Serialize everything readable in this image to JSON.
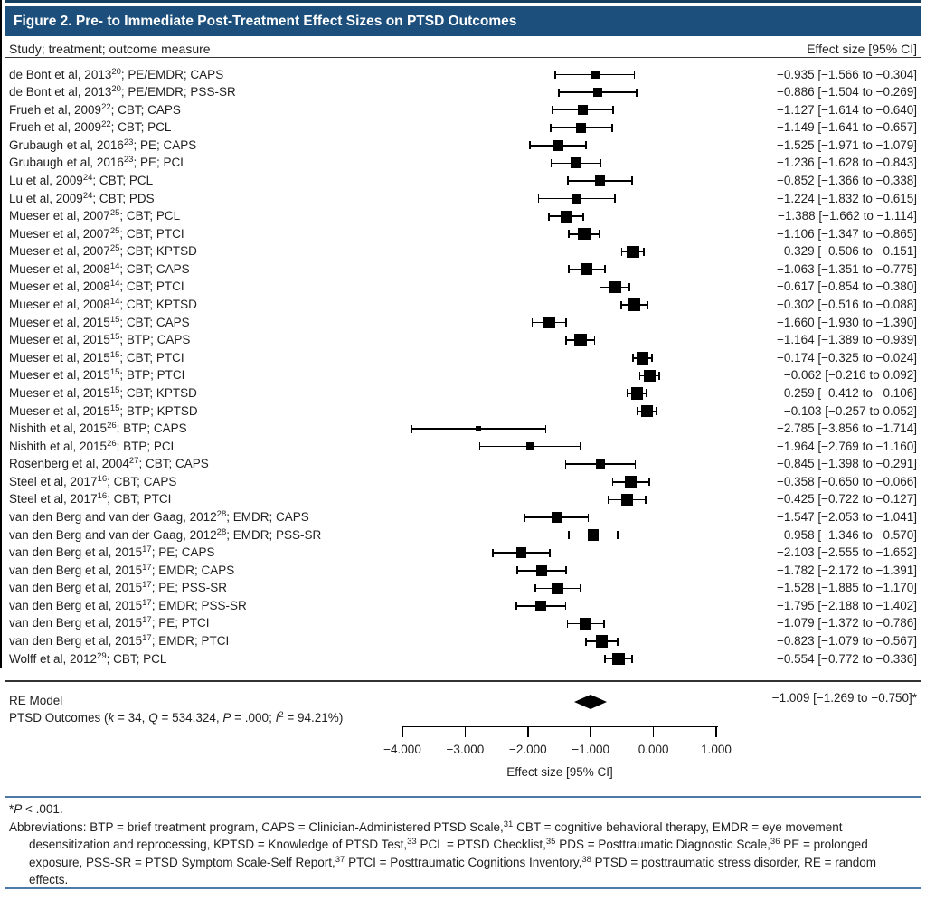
{
  "figure": {
    "title": "Figure 2. Pre- to Immediate Post-Treatment Effect Sizes on PTSD Outcomes",
    "col_left_header": "Study; treatment; outcome measure",
    "col_right_header": "Effect size [95% CI]"
  },
  "colors": {
    "title_bar": "#1d4f7c",
    "top_accent_rule": "#16405f",
    "footer_rule": "#4d79a4",
    "plot_ink": "#000000",
    "text": "#1f1f1f"
  },
  "chart_data": {
    "type": "forest",
    "title": "Figure 2. Pre- to Immediate Post-Treatment Effect Sizes on PTSD Outcomes",
    "xlabel": "Effect size [95% CI]",
    "xlim": [
      -4.35,
      1.35
    ],
    "zero_reference_line": 0,
    "x_ticks": [
      -4.0,
      -3.0,
      -2.0,
      -1.0,
      0.0,
      1.0
    ],
    "x_tick_labels": [
      "−4.000",
      "−3.000",
      "−2.000",
      "−1.000",
      "0.000",
      "1.000"
    ],
    "studies": [
      {
        "label_pre": "de Bont et al, 2013",
        "label_sup": "20",
        "label_post": "; PE/EMDR; CAPS",
        "es": -0.935,
        "lo": -1.566,
        "hi": -0.304,
        "es_label": "−0.935 [−1.566 to −0.304]"
      },
      {
        "label_pre": "de Bont et al, 2013",
        "label_sup": "20",
        "label_post": "; PE/EMDR; PSS-SR",
        "es": -0.886,
        "lo": -1.504,
        "hi": -0.269,
        "es_label": "−0.886 [−1.504 to −0.269]"
      },
      {
        "label_pre": "Frueh et al, 2009",
        "label_sup": "22",
        "label_post": "; CBT; CAPS",
        "es": -1.127,
        "lo": -1.614,
        "hi": -0.64,
        "es_label": "−1.127 [−1.614 to −0.640]"
      },
      {
        "label_pre": "Frueh et al, 2009",
        "label_sup": "22",
        "label_post": "; CBT; PCL",
        "es": -1.149,
        "lo": -1.641,
        "hi": -0.657,
        "es_label": "−1.149 [−1.641 to −0.657]"
      },
      {
        "label_pre": "Grubaugh et al, 2016",
        "label_sup": "23",
        "label_post": "; PE; CAPS",
        "es": -1.525,
        "lo": -1.971,
        "hi": -1.079,
        "es_label": "−1.525 [−1.971 to −1.079]"
      },
      {
        "label_pre": "Grubaugh et al, 2016",
        "label_sup": "23",
        "label_post": "; PE; PCL",
        "es": -1.236,
        "lo": -1.628,
        "hi": -0.843,
        "es_label": "−1.236 [−1.628 to −0.843]"
      },
      {
        "label_pre": "Lu et al, 2009",
        "label_sup": "24",
        "label_post": "; CBT; PCL",
        "es": -0.852,
        "lo": -1.366,
        "hi": -0.338,
        "es_label": "−0.852 [−1.366 to −0.338]"
      },
      {
        "label_pre": "Lu et al, 2009",
        "label_sup": "24",
        "label_post": "; CBT; PDS",
        "es": -1.224,
        "lo": -1.832,
        "hi": -0.615,
        "es_label": "−1.224 [−1.832 to −0.615]"
      },
      {
        "label_pre": "Mueser et al, 2007",
        "label_sup": "25",
        "label_post": "; CBT; PCL",
        "es": -1.388,
        "lo": -1.662,
        "hi": -1.114,
        "es_label": "−1.388 [−1.662 to −1.114]"
      },
      {
        "label_pre": "Mueser et al, 2007",
        "label_sup": "25",
        "label_post": "; CBT; PTCI",
        "es": -1.106,
        "lo": -1.347,
        "hi": -0.865,
        "es_label": "−1.106 [−1.347 to −0.865]"
      },
      {
        "label_pre": "Mueser et al, 2007",
        "label_sup": "25",
        "label_post": "; CBT; KPTSD",
        "es": -0.329,
        "lo": -0.506,
        "hi": -0.151,
        "es_label": "−0.329 [−0.506 to −0.151]"
      },
      {
        "label_pre": "Mueser et al, 2008",
        "label_sup": "14",
        "label_post": "; CBT; CAPS",
        "es": -1.063,
        "lo": -1.351,
        "hi": -0.775,
        "es_label": "−1.063 [−1.351 to −0.775]"
      },
      {
        "label_pre": "Mueser et al, 2008",
        "label_sup": "14",
        "label_post": "; CBT; PTCI",
        "es": -0.617,
        "lo": -0.854,
        "hi": -0.38,
        "es_label": "−0.617 [−0.854 to −0.380]"
      },
      {
        "label_pre": "Mueser et al, 2008",
        "label_sup": "14",
        "label_post": "; CBT; KPTSD",
        "es": -0.302,
        "lo": -0.516,
        "hi": -0.088,
        "es_label": "−0.302 [−0.516 to −0.088]"
      },
      {
        "label_pre": "Mueser et al, 2015",
        "label_sup": "15",
        "label_post": "; CBT; CAPS",
        "es": -1.66,
        "lo": -1.93,
        "hi": -1.39,
        "es_label": "−1.660 [−1.930 to −1.390]"
      },
      {
        "label_pre": "Mueser et al, 2015",
        "label_sup": "15",
        "label_post": "; BTP; CAPS",
        "es": -1.164,
        "lo": -1.389,
        "hi": -0.939,
        "es_label": "−1.164 [−1.389 to −0.939]"
      },
      {
        "label_pre": "Mueser et al, 2015",
        "label_sup": "15",
        "label_post": "; CBT; PTCI",
        "es": -0.174,
        "lo": -0.325,
        "hi": -0.024,
        "es_label": "−0.174 [−0.325 to −0.024]"
      },
      {
        "label_pre": "Mueser et al, 2015",
        "label_sup": "15",
        "label_post": "; BTP; PTCI",
        "es": -0.062,
        "lo": -0.216,
        "hi": 0.092,
        "es_label": "−0.062 [−0.216 to 0.092]"
      },
      {
        "label_pre": "Mueser et al, 2015",
        "label_sup": "15",
        "label_post": "; CBT; KPTSD",
        "es": -0.259,
        "lo": -0.412,
        "hi": -0.106,
        "es_label": "−0.259 [−0.412 to −0.106]"
      },
      {
        "label_pre": "Mueser et al, 2015",
        "label_sup": "15",
        "label_post": "; BTP; KPTSD",
        "es": -0.103,
        "lo": -0.257,
        "hi": 0.052,
        "es_label": "−0.103 [−0.257 to 0.052]"
      },
      {
        "label_pre": "Nishith et al, 2015",
        "label_sup": "26",
        "label_post": "; BTP; CAPS",
        "es": -2.785,
        "lo": -3.856,
        "hi": -1.714,
        "es_label": "−2.785 [−3.856 to −1.714]"
      },
      {
        "label_pre": "Nishith et al, 2015",
        "label_sup": "26",
        "label_post": "; BTP; PCL",
        "es": -1.964,
        "lo": -2.769,
        "hi": -1.16,
        "es_label": "−1.964 [−2.769 to −1.160]"
      },
      {
        "label_pre": "Rosenberg et al, 2004",
        "label_sup": "27",
        "label_post": "; CBT; CAPS",
        "es": -0.845,
        "lo": -1.398,
        "hi": -0.291,
        "es_label": "−0.845 [−1.398 to −0.291]"
      },
      {
        "label_pre": "Steel et al, 2017",
        "label_sup": "16",
        "label_post": "; CBT; CAPS",
        "es": -0.358,
        "lo": -0.65,
        "hi": -0.066,
        "es_label": "−0.358 [−0.650 to −0.066]"
      },
      {
        "label_pre": "Steel et al, 2017",
        "label_sup": "16",
        "label_post": "; CBT; PTCI",
        "es": -0.425,
        "lo": -0.722,
        "hi": -0.127,
        "es_label": "−0.425 [−0.722 to −0.127]"
      },
      {
        "label_pre": "van den Berg and van der Gaag, 2012",
        "label_sup": "28",
        "label_post": "; EMDR; CAPS",
        "es": -1.547,
        "lo": -2.053,
        "hi": -1.041,
        "es_label": "−1.547 [−2.053 to −1.041]"
      },
      {
        "label_pre": "van den Berg and van der Gaag, 2012",
        "label_sup": "28",
        "label_post": "; EMDR; PSS-SR",
        "es": -0.958,
        "lo": -1.346,
        "hi": -0.57,
        "es_label": "−0.958 [−1.346 to −0.570]"
      },
      {
        "label_pre": "van den Berg et al, 2015",
        "label_sup": "17",
        "label_post": "; PE; CAPS",
        "es": -2.103,
        "lo": -2.555,
        "hi": -1.652,
        "es_label": "−2.103 [−2.555 to −1.652]"
      },
      {
        "label_pre": "van den Berg et al, 2015",
        "label_sup": "17",
        "label_post": "; EMDR; CAPS",
        "es": -1.782,
        "lo": -2.172,
        "hi": -1.391,
        "es_label": "−1.782 [−2.172 to −1.391]"
      },
      {
        "label_pre": "van den Berg et al, 2015",
        "label_sup": "17",
        "label_post": "; PE; PSS-SR",
        "es": -1.528,
        "lo": -1.885,
        "hi": -1.17,
        "es_label": "−1.528 [−1.885 to −1.170]"
      },
      {
        "label_pre": "van den Berg et al, 2015",
        "label_sup": "17",
        "label_post": "; EMDR; PSS-SR",
        "es": -1.795,
        "lo": -2.188,
        "hi": -1.402,
        "es_label": "−1.795 [−2.188 to −1.402]"
      },
      {
        "label_pre": "van den Berg et al, 2015",
        "label_sup": "17",
        "label_post": "; PE; PTCI",
        "es": -1.079,
        "lo": -1.372,
        "hi": -0.786,
        "es_label": "−1.079 [−1.372 to −0.786]"
      },
      {
        "label_pre": "van den Berg et al, 2015",
        "label_sup": "17",
        "label_post": "; EMDR; PTCI",
        "es": -0.823,
        "lo": -1.079,
        "hi": -0.567,
        "es_label": "−0.823 [−1.079 to −0.567]"
      },
      {
        "label_pre": "Wolff et al, 2012",
        "label_sup": "29",
        "label_post": "; CBT; PCL",
        "es": -0.554,
        "lo": -0.772,
        "hi": -0.336,
        "es_label": "−0.554 [−0.772 to −0.336]"
      }
    ],
    "summary": {
      "model_label": "RE Model",
      "stats_segments": [
        {
          "t": "PTSD Outcomes ("
        },
        {
          "i": "k"
        },
        {
          "t": " = 34, "
        },
        {
          "i": "Q"
        },
        {
          "t": " = 534.324, "
        },
        {
          "i": "P"
        },
        {
          "t": " = .000; "
        },
        {
          "i": "I"
        },
        {
          "sup": "2"
        },
        {
          "t": " = 94.21%)"
        }
      ],
      "es": -1.009,
      "lo": -1.269,
      "hi": -0.75,
      "es_label": "−1.009 [−1.269 to −0.750]*"
    }
  },
  "footnotes": {
    "p_note_segments": [
      {
        "t": "*"
      },
      {
        "i": "P"
      },
      {
        "t": " < .001."
      }
    ],
    "abbrev_segments": [
      {
        "t": "Abbreviations: BTP = brief treatment program, CAPS = Clinician-Administered PTSD Scale,"
      },
      {
        "sup": "31"
      },
      {
        "t": " CBT = cognitive behavioral therapy, EMDR = eye movement desensitization and reprocessing, KPTSD = Knowledge of PTSD Test,"
      },
      {
        "sup": "33"
      },
      {
        "t": " PCL = PTSD Checklist,"
      },
      {
        "sup": "35"
      },
      {
        "t": " PDS = Posttraumatic Diagnostic Scale,"
      },
      {
        "sup": "36"
      },
      {
        "t": " PE = prolonged exposure, PSS-SR = PTSD Symptom Scale-Self Report,"
      },
      {
        "sup": "37"
      },
      {
        "t": " PTCI = Posttraumatic Cognitions Inventory,"
      },
      {
        "sup": "38"
      },
      {
        "t": " PTSD = posttraumatic stress disorder, RE = random effects."
      }
    ]
  }
}
